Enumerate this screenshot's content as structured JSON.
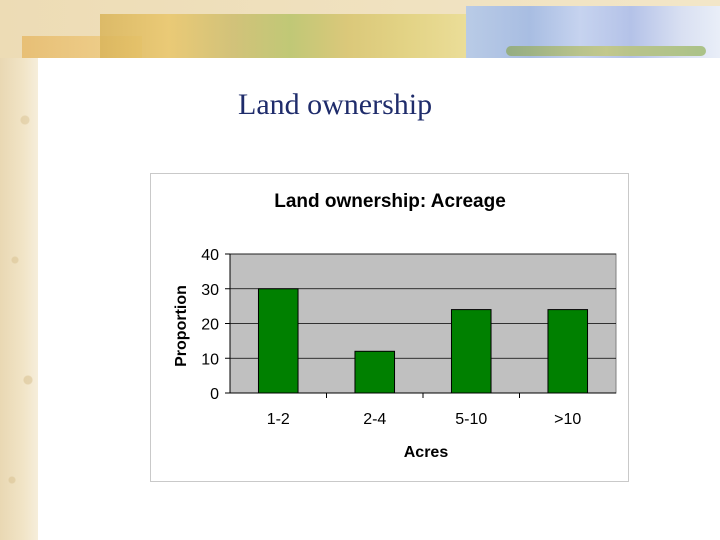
{
  "slide": {
    "title": "Land ownership"
  },
  "colors": {
    "bar": "#008000",
    "plot_bg": "#c0c0c0",
    "title": "#1f2c6b"
  },
  "chart_data": {
    "type": "bar",
    "title": "Land ownership: Acreage",
    "xlabel": "Acres",
    "ylabel": "Proportion",
    "categories": [
      "1-2",
      "2-4",
      "5-10",
      ">10"
    ],
    "values": [
      30,
      12,
      24,
      24
    ],
    "ylim": [
      0,
      40
    ],
    "yticks": [
      0,
      10,
      20,
      30,
      40
    ],
    "grid": true,
    "legend": "none"
  }
}
